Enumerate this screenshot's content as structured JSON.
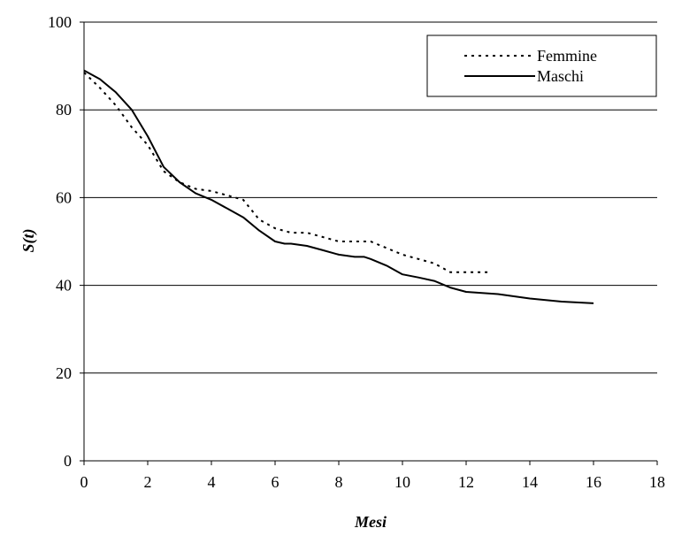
{
  "chart_data": {
    "type": "line",
    "xlabel": "Mesi",
    "ylabel": "S(t)",
    "xlim": [
      0,
      18
    ],
    "ylim": [
      0,
      100
    ],
    "x_ticks": [
      0,
      2,
      4,
      6,
      8,
      10,
      12,
      14,
      16,
      18
    ],
    "y_ticks": [
      0,
      20,
      40,
      60,
      80,
      100
    ],
    "grid": "horizontal",
    "legend_position": "top-right",
    "series": [
      {
        "name": "Femmine",
        "style": "dotted",
        "color": "#000000",
        "x": [
          0,
          0.5,
          1,
          1.5,
          2,
          2.5,
          3,
          3.5,
          4,
          4.5,
          5,
          5.5,
          6,
          6.5,
          7,
          7.5,
          8,
          8.5,
          9,
          9.5,
          10,
          10.5,
          11,
          11.5,
          12,
          12.8
        ],
        "y": [
          88.5,
          85,
          81,
          76,
          72,
          66,
          63.5,
          62,
          61.5,
          60.5,
          59.5,
          55,
          53,
          52,
          52,
          51,
          50,
          50,
          50,
          48.5,
          47,
          46,
          45,
          43,
          43,
          43
        ]
      },
      {
        "name": "Maschi",
        "style": "solid",
        "color": "#000000",
        "x": [
          0,
          0.5,
          1,
          1.5,
          2,
          2.5,
          3,
          3.5,
          4,
          4.5,
          5,
          5.5,
          6,
          6.3,
          6.5,
          7,
          7.5,
          8,
          8.5,
          8.8,
          9,
          9.5,
          10,
          10.5,
          11,
          11.5,
          12,
          13,
          14,
          15,
          16
        ],
        "y": [
          89,
          87,
          84,
          80,
          74,
          67,
          63.5,
          61,
          59.5,
          57.5,
          55.5,
          52.5,
          50,
          49.5,
          49.5,
          49,
          48,
          47,
          46.5,
          46.5,
          46,
          44.5,
          42.5,
          41.8,
          41,
          39.5,
          38.5,
          38,
          37,
          36.3,
          35.9
        ]
      }
    ]
  }
}
